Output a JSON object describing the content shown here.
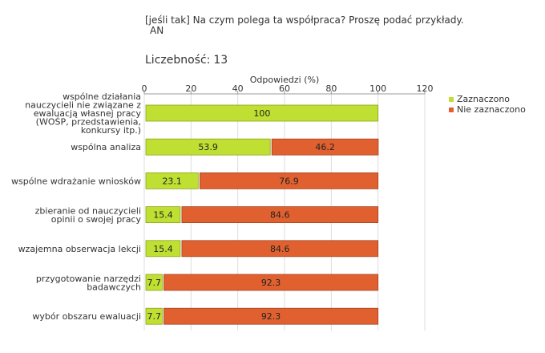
{
  "header": {
    "question_line1": "[jeśli tak] Na czym polega ta współpraca? Proszę podać przykłady.",
    "question_line2": "AN",
    "count_label": "Liczebność:",
    "count_value": "13"
  },
  "colors": {
    "zaznaczono": "#bfe032",
    "nie_zaznaczono": "#e0612f",
    "grid": "#dddddd",
    "axis": "#999999"
  },
  "chart_data": {
    "type": "bar",
    "orientation": "horizontal",
    "stacked": true,
    "title": "",
    "xlabel": "Odpowiedzi (%)",
    "ylabel": "",
    "xlim": [
      0,
      120
    ],
    "xticks": [
      0,
      20,
      40,
      60,
      80,
      100,
      120
    ],
    "grid": true,
    "legend_position": "right",
    "categories": [
      [
        "wspólne działania",
        "nauczycieli nie związane z",
        "ewaluacją własnej pracy",
        "(WOŚP, przedstawienia,",
        "konkursy itp.)"
      ],
      [
        "wspólna analiza"
      ],
      [
        "wspólne wdrażanie wniosków"
      ],
      [
        "zbieranie od nauczycieli",
        "opinii o swojej pracy"
      ],
      [
        "wzajemna obserwacja lekcji"
      ],
      [
        "przygotowanie narzędzi",
        "badawczych"
      ],
      [
        "wybór obszaru ewaluacji"
      ]
    ],
    "series": [
      {
        "name": "Zaznaczono",
        "values": [
          100,
          53.9,
          23.1,
          15.4,
          15.4,
          7.7,
          7.7
        ],
        "labels": [
          "100",
          "53.9",
          "23.1",
          "15.4",
          "15.4",
          "7.7",
          "7.7"
        ]
      },
      {
        "name": "Nie zaznaczono",
        "values": [
          0,
          46.2,
          76.9,
          84.6,
          84.6,
          92.3,
          92.3
        ],
        "labels": [
          "",
          "46.2",
          "76.9",
          "84.6",
          "84.6",
          "92.3",
          "92.3"
        ]
      }
    ]
  }
}
